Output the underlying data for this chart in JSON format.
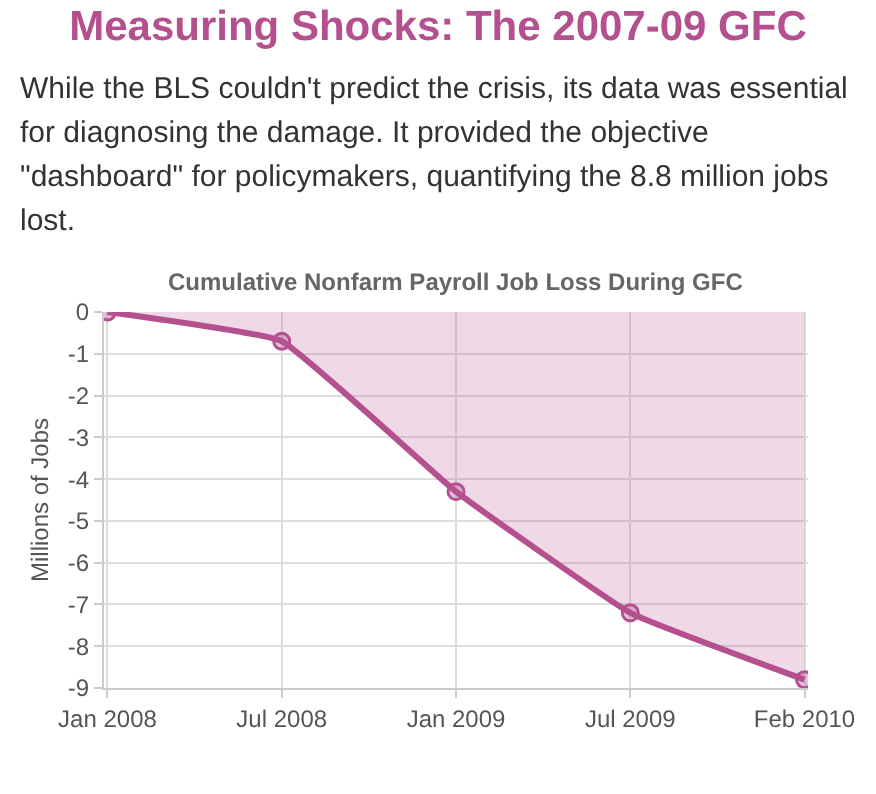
{
  "chart_data": {
    "type": "area",
    "title": "Measuring Shocks: The 2007-09 GFC",
    "subtitle": "While the BLS couldn't predict the crisis, its data was essential for diagnosing the damage. It provided the objective \"dashboard\" for policymakers, quantifying the 8.8 million jobs lost.",
    "annotations": [
      "Cumulative Nonfarm Payroll Job Loss During GFC"
    ],
    "ylabel": "Millions of Jobs",
    "categories": [
      "Jan 2008",
      "Jul 2008",
      "Jan 2009",
      "Jul 2009",
      "Feb 2010"
    ],
    "series": [
      {
        "color": "#b5508f",
        "values": [
          0,
          -0.7,
          -4.3,
          -7.2,
          -8.8
        ]
      }
    ],
    "ylim": [
      -9,
      0
    ],
    "yticks": [
      0,
      -1,
      -2,
      -3,
      -4,
      -5,
      -6,
      -7,
      -8,
      -9
    ],
    "grid": true,
    "marker": "circle",
    "line_style": "solid"
  }
}
